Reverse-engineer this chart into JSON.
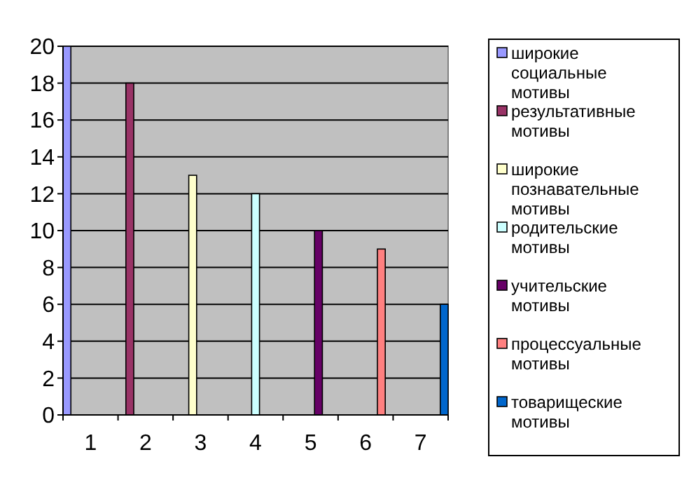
{
  "chart_data": {
    "type": "bar",
    "categories": [
      "1",
      "2",
      "3",
      "4",
      "5",
      "6",
      "7"
    ],
    "series": [
      {
        "name": "широкие социальные мотивы",
        "color": "#9999ff",
        "values": [
          20,
          null,
          null,
          null,
          null,
          null,
          null
        ]
      },
      {
        "name": "результативные мотивы",
        "color": "#993366",
        "values": [
          null,
          18,
          null,
          null,
          null,
          null,
          null
        ]
      },
      {
        "name": "широкие познавательные мотивы",
        "color": "#ffffcc",
        "values": [
          null,
          null,
          13,
          null,
          null,
          null,
          null
        ]
      },
      {
        "name": "родительские мотивы",
        "color": "#ccffff",
        "values": [
          null,
          null,
          null,
          12,
          null,
          null,
          null
        ]
      },
      {
        "name": "учительские мотивы",
        "color": "#660066",
        "values": [
          null,
          null,
          null,
          null,
          10,
          null,
          null
        ]
      },
      {
        "name": "процессуальные мотивы",
        "color": "#ff8080",
        "values": [
          null,
          null,
          null,
          null,
          null,
          9,
          null
        ]
      },
      {
        "name": "товарищеские мотивы",
        "color": "#0066cc",
        "values": [
          null,
          null,
          null,
          null,
          null,
          null,
          6
        ]
      }
    ],
    "ylim": [
      0,
      20
    ],
    "yticks": [
      0,
      2,
      4,
      6,
      8,
      10,
      12,
      14,
      16,
      18,
      20
    ],
    "grid": "y",
    "legend": "right"
  }
}
